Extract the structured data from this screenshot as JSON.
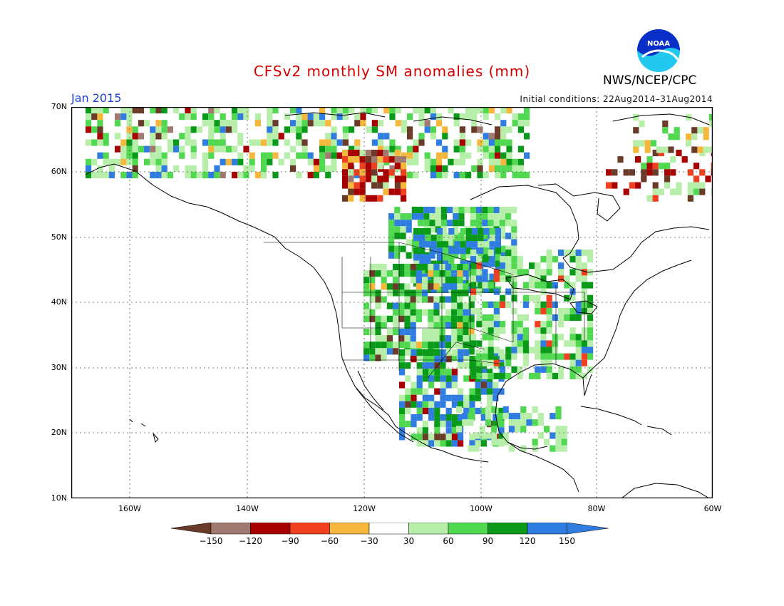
{
  "header": {
    "title": "CFSv2 monthly SM anomalies (mm)",
    "period": "Jan 2015",
    "initial_conditions": "Initial conditions: 22Aug2014–31Aug2014",
    "org": "NWS/NCEP/CPC",
    "logo_text": "NOAA"
  },
  "map": {
    "lat_labels": [
      "70N",
      "60N",
      "50N",
      "40N",
      "30N",
      "20N",
      "10N"
    ],
    "lon_labels": [
      "160W",
      "140W",
      "120W",
      "100W",
      "80W",
      "60W"
    ],
    "grid": "dotted"
  },
  "colorbar": {
    "ticks": [
      "−150",
      "−120",
      "−90",
      "−60",
      "−30",
      "30",
      "60",
      "90",
      "120",
      "150"
    ],
    "colors": [
      "#6b3b2a",
      "#a07a70",
      "#a80000",
      "#f04020",
      "#f6b83c",
      "#ffffff",
      "#b7efaa",
      "#50d850",
      "#0a9a1a",
      "#2f7de0",
      "#2f7de0"
    ]
  }
}
